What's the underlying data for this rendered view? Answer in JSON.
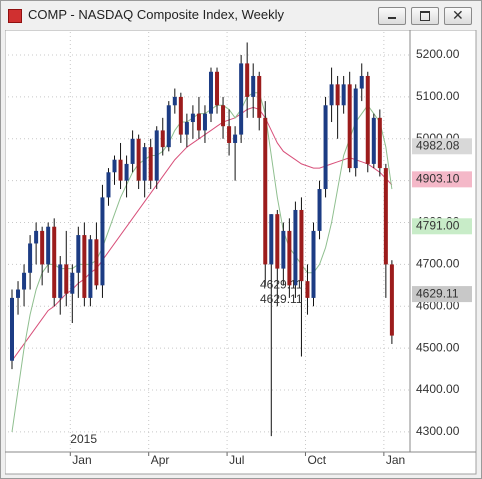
{
  "chart_data": {
    "type": "candlestick",
    "title": "COMP - NASDAQ Composite Index, Weekly",
    "categories": [
      null,
      null,
      null,
      null,
      null,
      null,
      null,
      null,
      null,
      null,
      "Jan",
      null,
      null,
      null,
      null,
      null,
      null,
      null,
      null,
      null,
      null,
      null,
      null,
      "Apr",
      null,
      null,
      null,
      null,
      null,
      null,
      null,
      null,
      null,
      null,
      null,
      null,
      "Jul",
      null,
      null,
      null,
      null,
      null,
      null,
      null,
      null,
      null,
      null,
      null,
      null,
      "Oct",
      null,
      null,
      null,
      null,
      null,
      null,
      null,
      null,
      null,
      null,
      null,
      null,
      "Jan",
      null
    ],
    "year_label": "2015",
    "open": [
      4470,
      4620,
      4640,
      4680,
      4750,
      4780,
      4700,
      4790,
      4620,
      4700,
      4630,
      4680,
      4770,
      4620,
      4760,
      4650,
      4860,
      4920,
      4950,
      4900,
      4940,
      5000,
      4900,
      4980,
      4900,
      5020,
      4980,
      5080,
      5100,
      5010,
      5040,
      5060,
      5020,
      5060,
      5160,
      5080,
      5030,
      4990,
      5010,
      5180,
      5100,
      5150,
      5050,
      4700,
      4820,
      4690,
      4780,
      4650,
      4830,
      4660,
      4620,
      4780,
      4880,
      5080,
      5130,
      5080,
      5130,
      4930,
      5120,
      5150,
      4940,
      5050,
      4930,
      4700
    ],
    "high": [
      4640,
      4660,
      4700,
      4770,
      4800,
      4790,
      4800,
      4810,
      4720,
      4780,
      4700,
      4790,
      4800,
      4770,
      4800,
      4890,
      4930,
      4960,
      4990,
      4960,
      5020,
      5010,
      4990,
      5000,
      5030,
      5050,
      5090,
      5120,
      5110,
      5060,
      5080,
      5100,
      5080,
      5170,
      5170,
      5100,
      5070,
      5030,
      5200,
      5230,
      5180,
      5160,
      5090,
      4820,
      4830,
      4800,
      4810,
      4850,
      4860,
      4700,
      4800,
      4900,
      5100,
      5170,
      5150,
      5150,
      5160,
      5130,
      5180,
      5160,
      5060,
      5070,
      4940,
      4710
    ],
    "low": [
      4450,
      4580,
      4600,
      4640,
      4700,
      4650,
      4680,
      4600,
      4580,
      4600,
      4560,
      4620,
      4600,
      4600,
      4640,
      4620,
      4840,
      4890,
      4880,
      4860,
      4920,
      4880,
      4860,
      4880,
      4880,
      4960,
      4970,
      5060,
      4990,
      4980,
      5000,
      5000,
      4990,
      5040,
      5060,
      5000,
      4960,
      4900,
      4990,
      5050,
      5050,
      5020,
      4650,
      4290,
      4600,
      4650,
      4620,
      4620,
      4480,
      4580,
      4600,
      4760,
      4860,
      5040,
      5000,
      5060,
      4920,
      4910,
      5090,
      4920,
      4930,
      4910,
      4620,
      4510
    ],
    "close": [
      4620,
      4640,
      4680,
      4750,
      4780,
      4700,
      4790,
      4620,
      4700,
      4630,
      4680,
      4770,
      4620,
      4760,
      4650,
      4860,
      4920,
      4950,
      4900,
      4940,
      5000,
      4900,
      4980,
      4900,
      5020,
      4980,
      5080,
      5100,
      5010,
      5040,
      5060,
      5020,
      5060,
      5160,
      5080,
      5030,
      4990,
      5010,
      5180,
      5100,
      5150,
      5050,
      4700,
      4820,
      4690,
      4780,
      4650,
      4830,
      4660,
      4620,
      4780,
      4880,
      5080,
      5130,
      5080,
      5130,
      4930,
      5120,
      5150,
      4940,
      5050,
      4930,
      4700,
      4530
    ],
    "up_color": "#1c3c84",
    "down_color": "#9c1c1c",
    "moving_averages": [
      {
        "color": "#d8507a",
        "values": [
          4470,
          4490,
          4510,
          4530,
          4550,
          4570,
          4590,
          4600,
          4615,
          4630,
          4640,
          4655,
          4665,
          4680,
          4690,
          4710,
          4730,
          4750,
          4770,
          4790,
          4810,
          4830,
          4850,
          4870,
          4890,
          4910,
          4930,
          4950,
          4965,
          4980,
          4990,
          5000,
          5010,
          5020,
          5030,
          5040,
          5045,
          5050,
          5060,
          5070,
          5075,
          5070,
          5050,
          5020,
          4990,
          4970,
          4960,
          4950,
          4940,
          4935,
          4930,
          4930,
          4935,
          4940,
          4945,
          4950,
          4955,
          4950,
          4945,
          4940,
          4930,
          4920,
          4905,
          4890
        ]
      },
      {
        "color": "#8fbf8f",
        "values": [
          4300,
          4400,
          4500,
          4580,
          4640,
          4680,
          4700,
          4700,
          4690,
          4690,
          4690,
          4700,
          4700,
          4700,
          4710,
          4740,
          4780,
          4820,
          4860,
          4890,
          4920,
          4940,
          4950,
          4960,
          4960,
          4970,
          4990,
          5020,
          5040,
          5040,
          5050,
          5060,
          5060,
          5070,
          5080,
          5080,
          5070,
          5050,
          5070,
          5100,
          5110,
          5110,
          5060,
          4960,
          4860,
          4780,
          4740,
          4720,
          4700,
          4680,
          4680,
          4700,
          4740,
          4800,
          4880,
          4960,
          5000,
          5040,
          5060,
          5080,
          5060,
          5040,
          4980,
          4880
        ]
      }
    ],
    "ylim": [
      4252,
      5255
    ],
    "yticks": [
      {
        "value": 4300,
        "label": "4300.00"
      },
      {
        "value": 4400,
        "label": "4400.00"
      },
      {
        "value": 4500,
        "label": "4500.00"
      },
      {
        "value": 4600,
        "label": "4600.00"
      },
      {
        "value": 4700,
        "label": "4700.00"
      },
      {
        "value": 4800,
        "label": "4800.00"
      },
      {
        "value": 4900,
        "label": "4900.00"
      },
      {
        "value": 5000,
        "label": "5000.00"
      },
      {
        "value": 5100,
        "label": "5100.00"
      },
      {
        "value": 5200,
        "label": "5200.00"
      }
    ],
    "price_labels": [
      {
        "value": 4982.08,
        "label": "4982.08",
        "color": "#d8d8d8"
      },
      {
        "value": 4903.1,
        "label": "4903.10",
        "color": "#f4b8c8"
      },
      {
        "value": 4791.0,
        "label": "4791.00",
        "color": "#c8ecc8"
      },
      {
        "value": 4629.11,
        "label": "4629.11",
        "color": "#c8c8c8"
      }
    ],
    "annotations": [
      {
        "value": 4650,
        "label": "4629.11"
      },
      {
        "value": 4615,
        "label": "4629.11"
      }
    ],
    "grid": true
  }
}
